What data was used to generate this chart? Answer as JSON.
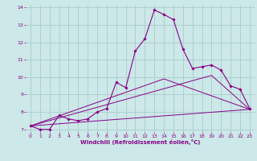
{
  "xlabel": "Windchill (Refroidissement éolien,°C)",
  "bg_color": "#cce8e8",
  "grid_color": "#aacccc",
  "line_color": "#880088",
  "xlim": [
    -0.5,
    23.5
  ],
  "ylim": [
    6.85,
    14.15
  ],
  "yticks": [
    7,
    8,
    9,
    10,
    11,
    12,
    13,
    14
  ],
  "xticks": [
    0,
    1,
    2,
    3,
    4,
    5,
    6,
    7,
    8,
    9,
    10,
    11,
    12,
    13,
    14,
    15,
    16,
    17,
    18,
    19,
    20,
    21,
    22,
    23
  ],
  "main_x": [
    0,
    1,
    2,
    3,
    4,
    5,
    6,
    7,
    8,
    9,
    10,
    11,
    12,
    13,
    14,
    15,
    16,
    17,
    18,
    19,
    20,
    21,
    22,
    23
  ],
  "main_y": [
    7.2,
    7.0,
    7.0,
    7.8,
    7.6,
    7.5,
    7.6,
    8.0,
    8.2,
    9.7,
    9.4,
    11.5,
    12.2,
    13.85,
    13.6,
    13.3,
    11.6,
    10.5,
    10.6,
    10.7,
    10.4,
    9.5,
    9.3,
    8.2
  ],
  "line1_x": [
    0,
    23
  ],
  "line1_y": [
    7.2,
    8.15
  ],
  "line2_x": [
    0,
    19,
    23
  ],
  "line2_y": [
    7.2,
    10.1,
    8.15
  ],
  "line3_x": [
    0,
    14,
    23
  ],
  "line3_y": [
    7.2,
    9.9,
    8.15
  ]
}
